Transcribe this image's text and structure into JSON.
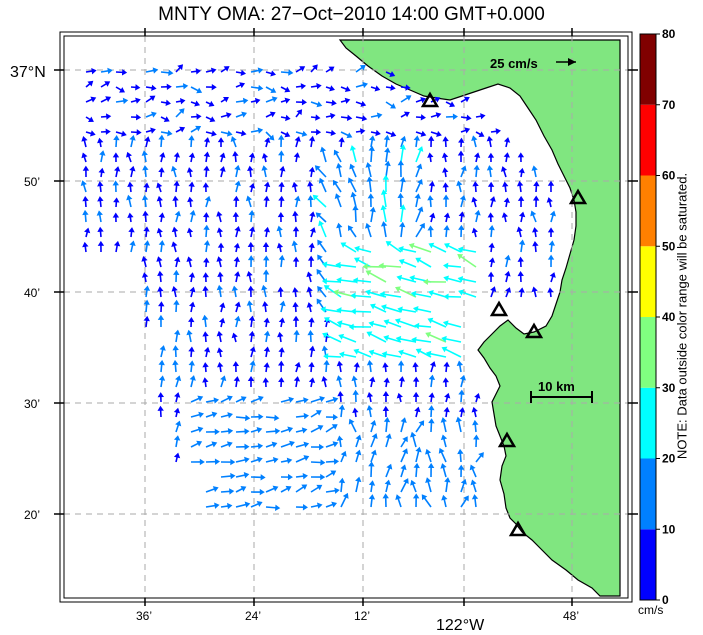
{
  "title": "MNTY OMA: 27−Oct−2010 14:00 GMT+0.000",
  "lat_labels": [
    "37°N",
    "50’",
    "40’",
    "30’",
    "20’"
  ],
  "lon_labels": [
    "36’",
    "24’",
    "12’",
    "122°W",
    "48’"
  ],
  "scale_arrow_label": "25 cm/s",
  "scale_bar_label": "10 km",
  "colorbar": {
    "ticks": [
      "0",
      "10",
      "20",
      "30",
      "40",
      "50",
      "60",
      "70",
      "80"
    ],
    "unit": "cm/s",
    "colors": [
      "#0000ff",
      "#0080ff",
      "#00ffff",
      "#80ff80",
      "#ffff00",
      "#ff8000",
      "#ff0000",
      "#800000"
    ],
    "note": "NOTE: Data outside color range will be saturated."
  },
  "colors": {
    "land": "#80e680",
    "coast": "#000000",
    "grid": "#aaaaaa"
  },
  "sites": [
    {
      "name": "site-1"
    },
    {
      "name": "site-2"
    },
    {
      "name": "site-3"
    },
    {
      "name": "site-4"
    },
    {
      "name": "site-5"
    },
    {
      "name": "site-6"
    }
  ]
}
